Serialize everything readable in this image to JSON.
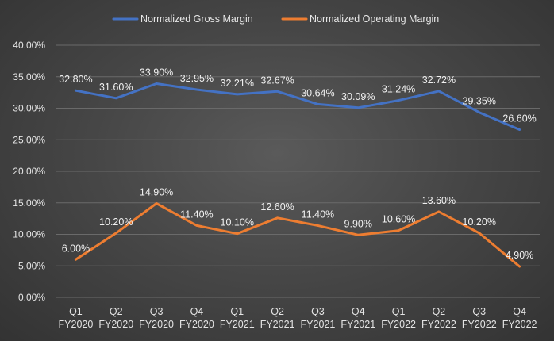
{
  "chart_data": {
    "type": "line",
    "title": "",
    "xlabel": "",
    "ylabel": "",
    "categories": [
      [
        "Q1",
        "FY2020"
      ],
      [
        "Q2",
        "FY2020"
      ],
      [
        "Q3",
        "FY2020"
      ],
      [
        "Q4",
        "FY2020"
      ],
      [
        "Q1",
        "FY2021"
      ],
      [
        "Q2",
        "FY2021"
      ],
      [
        "Q3",
        "FY2021"
      ],
      [
        "Q4",
        "FY2021"
      ],
      [
        "Q1",
        "FY2022"
      ],
      [
        "Q2",
        "FY2022"
      ],
      [
        "Q3",
        "FY2022"
      ],
      [
        "Q4",
        "FY2022"
      ]
    ],
    "series": [
      {
        "name": "Normalized Gross Margin",
        "color": "#4472C4",
        "values": [
          32.8,
          31.6,
          33.9,
          32.95,
          32.21,
          32.67,
          30.64,
          30.09,
          31.24,
          32.72,
          29.35,
          26.6
        ],
        "labels": [
          "32.80%",
          "31.60%",
          "33.90%",
          "32.95%",
          "32.21%",
          "32.67%",
          "30.64%",
          "30.09%",
          "31.24%",
          "32.72%",
          "29.35%",
          "26.60%"
        ]
      },
      {
        "name": "Normalized Operating Margin",
        "color": "#ED7D31",
        "values": [
          6.0,
          10.2,
          14.9,
          11.4,
          10.1,
          12.6,
          11.4,
          9.9,
          10.6,
          13.6,
          10.2,
          4.9
        ],
        "labels": [
          "6.00%",
          "10.20%",
          "14.90%",
          "11.40%",
          "10.10%",
          "12.60%",
          "11.40%",
          "9.90%",
          "10.60%",
          "13.60%",
          "10.20%",
          "4.90%"
        ]
      }
    ],
    "ylim": [
      0,
      40
    ],
    "yticks": [
      0,
      5,
      10,
      15,
      20,
      25,
      30,
      35,
      40
    ],
    "ytick_labels": [
      "0.00%",
      "5.00%",
      "10.00%",
      "15.00%",
      "20.00%",
      "25.00%",
      "30.00%",
      "35.00%",
      "40.00%"
    ],
    "grid": true,
    "legend_position": "top"
  }
}
